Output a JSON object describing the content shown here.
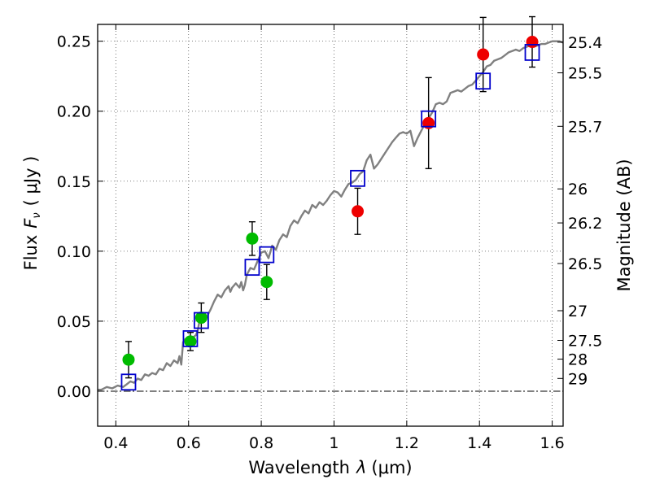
{
  "chart_data": {
    "type": "scatter",
    "xlabel_prefix": "Wavelength",
    "xlabel_symbol": "λ",
    "xlabel_unit": "(μm)",
    "ylabel_prefix": "Flux",
    "ylabel_symbol": "F",
    "ylabel_sub": "ν",
    "ylabel_unit": "( μJy )",
    "y2label": "Magnitude (AB)",
    "xlim": [
      0.35,
      1.63
    ],
    "ylim": [
      -0.025,
      0.262
    ],
    "grid": true,
    "x_ticks": [
      {
        "value": 0.4,
        "label": "0.4"
      },
      {
        "value": 0.6,
        "label": "0.6"
      },
      {
        "value": 0.8,
        "label": "0.8"
      },
      {
        "value": 1.0,
        "label": "1"
      },
      {
        "value": 1.2,
        "label": "1.2"
      },
      {
        "value": 1.4,
        "label": "1.4"
      },
      {
        "value": 1.6,
        "label": "1.6"
      }
    ],
    "y_ticks": [
      {
        "value": 0.0,
        "label": "0.00"
      },
      {
        "value": 0.05,
        "label": "0.05"
      },
      {
        "value": 0.1,
        "label": "0.10"
      },
      {
        "value": 0.15,
        "label": "0.15"
      },
      {
        "value": 0.2,
        "label": "0.20"
      },
      {
        "value": 0.25,
        "label": "0.25"
      }
    ],
    "y2_ticks": [
      {
        "flux": 0.2493,
        "label": "25.4"
      },
      {
        "flux": 0.2274,
        "label": "25.5"
      },
      {
        "flux": 0.1892,
        "label": "25.7"
      },
      {
        "flux": 0.1445,
        "label": "26"
      },
      {
        "flux": 0.1202,
        "label": "26.2"
      },
      {
        "flux": 0.0912,
        "label": "26.5"
      },
      {
        "flux": 0.0575,
        "label": "27"
      },
      {
        "flux": 0.0363,
        "label": "27.5"
      },
      {
        "flux": 0.0229,
        "label": "28"
      },
      {
        "flux": 0.0091,
        "label": "29"
      }
    ],
    "series": [
      {
        "kind": "green-points",
        "color": "#00bb00",
        "points": [
          {
            "x": 0.435,
            "y": 0.0225,
            "err": 0.013
          },
          {
            "x": 0.605,
            "y": 0.0355,
            "err": 0.0065
          },
          {
            "x": 0.635,
            "y": 0.0525,
            "err": 0.0105
          },
          {
            "x": 0.775,
            "y": 0.109,
            "err": 0.012
          },
          {
            "x": 0.815,
            "y": 0.078,
            "err": 0.0125
          }
        ]
      },
      {
        "kind": "red-points",
        "color": "#ee0000",
        "points": [
          {
            "x": 1.065,
            "y": 0.1285,
            "err": 0.0165
          },
          {
            "x": 1.26,
            "y": 0.1915,
            "err": 0.0325
          },
          {
            "x": 1.41,
            "y": 0.2405,
            "err": 0.0265
          },
          {
            "x": 1.545,
            "y": 0.2495,
            "err": 0.018
          }
        ]
      },
      {
        "kind": "model-squares",
        "color": "#0000cc",
        "points": [
          {
            "x": 0.435,
            "y": 0.0065
          },
          {
            "x": 0.605,
            "y": 0.0375
          },
          {
            "x": 0.635,
            "y": 0.0505
          },
          {
            "x": 0.775,
            "y": 0.0885
          },
          {
            "x": 0.815,
            "y": 0.0975
          },
          {
            "x": 1.065,
            "y": 0.152
          },
          {
            "x": 1.26,
            "y": 0.1945
          },
          {
            "x": 1.41,
            "y": 0.2215
          },
          {
            "x": 1.545,
            "y": 0.242
          }
        ]
      },
      {
        "kind": "model-spectrum",
        "color": "#808080",
        "line": [
          [
            0.35,
            0.001
          ],
          [
            0.36,
            0.001
          ],
          [
            0.375,
            0.003
          ],
          [
            0.39,
            0.002
          ],
          [
            0.405,
            0.004
          ],
          [
            0.42,
            0.003
          ],
          [
            0.43,
            0.005
          ],
          [
            0.44,
            0.007
          ],
          [
            0.45,
            0.006
          ],
          [
            0.46,
            0.009
          ],
          [
            0.47,
            0.008
          ],
          [
            0.48,
            0.012
          ],
          [
            0.49,
            0.011
          ],
          [
            0.5,
            0.013
          ],
          [
            0.51,
            0.012
          ],
          [
            0.52,
            0.016
          ],
          [
            0.53,
            0.015
          ],
          [
            0.54,
            0.02
          ],
          [
            0.55,
            0.018
          ],
          [
            0.56,
            0.022
          ],
          [
            0.57,
            0.02
          ],
          [
            0.575,
            0.025
          ],
          [
            0.58,
            0.019
          ],
          [
            0.585,
            0.035
          ],
          [
            0.59,
            0.037
          ],
          [
            0.6,
            0.035
          ],
          [
            0.61,
            0.038
          ],
          [
            0.62,
            0.04
          ],
          [
            0.625,
            0.043
          ],
          [
            0.63,
            0.05
          ],
          [
            0.64,
            0.049
          ],
          [
            0.65,
            0.053
          ],
          [
            0.66,
            0.058
          ],
          [
            0.67,
            0.064
          ],
          [
            0.68,
            0.069
          ],
          [
            0.69,
            0.067
          ],
          [
            0.7,
            0.072
          ],
          [
            0.71,
            0.075
          ],
          [
            0.715,
            0.071
          ],
          [
            0.72,
            0.074
          ],
          [
            0.73,
            0.077
          ],
          [
            0.74,
            0.074
          ],
          [
            0.745,
            0.078
          ],
          [
            0.75,
            0.072
          ],
          [
            0.755,
            0.076
          ],
          [
            0.76,
            0.083
          ],
          [
            0.77,
            0.088
          ],
          [
            0.78,
            0.087
          ],
          [
            0.79,
            0.093
          ],
          [
            0.8,
            0.099
          ],
          [
            0.81,
            0.1
          ],
          [
            0.82,
            0.095
          ],
          [
            0.83,
            0.104
          ],
          [
            0.84,
            0.101
          ],
          [
            0.85,
            0.108
          ],
          [
            0.86,
            0.112
          ],
          [
            0.87,
            0.11
          ],
          [
            0.88,
            0.118
          ],
          [
            0.89,
            0.122
          ],
          [
            0.9,
            0.12
          ],
          [
            0.91,
            0.125
          ],
          [
            0.92,
            0.129
          ],
          [
            0.93,
            0.127
          ],
          [
            0.94,
            0.133
          ],
          [
            0.95,
            0.131
          ],
          [
            0.96,
            0.135
          ],
          [
            0.97,
            0.133
          ],
          [
            0.98,
            0.136
          ],
          [
            0.99,
            0.14
          ],
          [
            1.0,
            0.143
          ],
          [
            1.01,
            0.142
          ],
          [
            1.02,
            0.139
          ],
          [
            1.03,
            0.144
          ],
          [
            1.04,
            0.148
          ],
          [
            1.05,
            0.149
          ],
          [
            1.06,
            0.151
          ],
          [
            1.07,
            0.155
          ],
          [
            1.08,
            0.157
          ],
          [
            1.09,
            0.165
          ],
          [
            1.1,
            0.169
          ],
          [
            1.11,
            0.159
          ],
          [
            1.12,
            0.162
          ],
          [
            1.13,
            0.166
          ],
          [
            1.14,
            0.17
          ],
          [
            1.15,
            0.174
          ],
          [
            1.16,
            0.178
          ],
          [
            1.17,
            0.181
          ],
          [
            1.18,
            0.184
          ],
          [
            1.19,
            0.185
          ],
          [
            1.2,
            0.184
          ],
          [
            1.21,
            0.186
          ],
          [
            1.22,
            0.175
          ],
          [
            1.23,
            0.181
          ],
          [
            1.24,
            0.186
          ],
          [
            1.25,
            0.191
          ],
          [
            1.26,
            0.195
          ],
          [
            1.27,
            0.199
          ],
          [
            1.28,
            0.205
          ],
          [
            1.29,
            0.206
          ],
          [
            1.3,
            0.205
          ],
          [
            1.31,
            0.207
          ],
          [
            1.32,
            0.213
          ],
          [
            1.33,
            0.214
          ],
          [
            1.34,
            0.215
          ],
          [
            1.35,
            0.214
          ],
          [
            1.36,
            0.216
          ],
          [
            1.37,
            0.218
          ],
          [
            1.38,
            0.219
          ],
          [
            1.39,
            0.222
          ],
          [
            1.4,
            0.225
          ],
          [
            1.41,
            0.228
          ],
          [
            1.42,
            0.232
          ],
          [
            1.43,
            0.233
          ],
          [
            1.44,
            0.236
          ],
          [
            1.45,
            0.237
          ],
          [
            1.46,
            0.238
          ],
          [
            1.47,
            0.24
          ],
          [
            1.48,
            0.242
          ],
          [
            1.49,
            0.243
          ],
          [
            1.5,
            0.244
          ],
          [
            1.51,
            0.243
          ],
          [
            1.52,
            0.245
          ],
          [
            1.53,
            0.246
          ],
          [
            1.54,
            0.247
          ],
          [
            1.55,
            0.246
          ],
          [
            1.56,
            0.247
          ],
          [
            1.57,
            0.248
          ],
          [
            1.58,
            0.248
          ],
          [
            1.59,
            0.249
          ],
          [
            1.6,
            0.25
          ],
          [
            1.61,
            0.25
          ],
          [
            1.62,
            0.25
          ],
          [
            1.63,
            0.249
          ]
        ]
      }
    ]
  }
}
